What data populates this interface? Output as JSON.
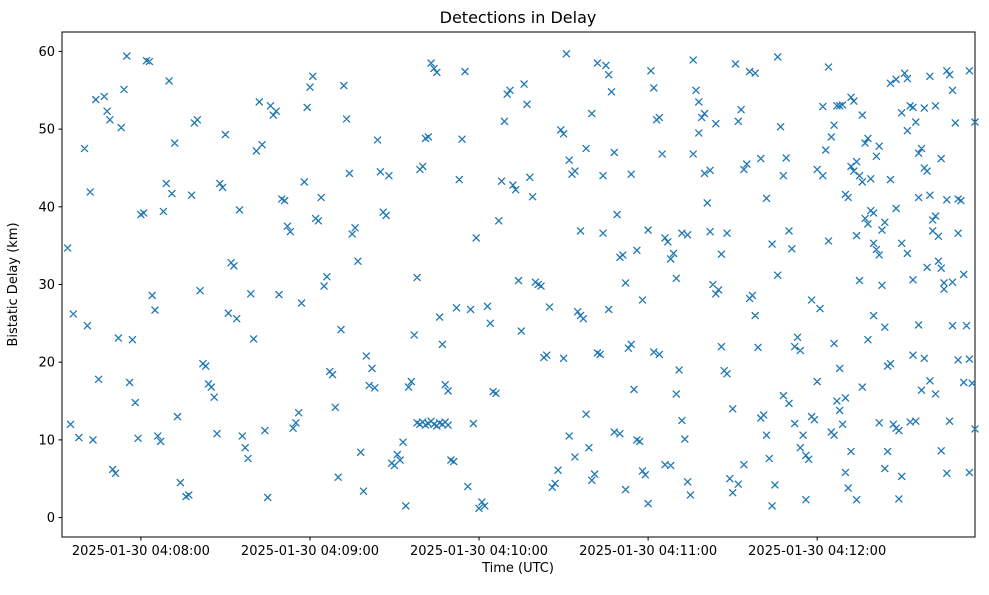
{
  "chart_data": {
    "type": "scatter",
    "title": "Detections in Delay",
    "xlabel": "Time (UTC)",
    "ylabel": "Bistatic Delay (km)",
    "marker": "x",
    "marker_color": "#1f77b4",
    "frame_color": "#000000",
    "x_unit": "seconds since 2025-01-30 04:08:00 UTC",
    "xlim": [
      -28,
      296
    ],
    "ylim": [
      -2.5,
      62.5
    ],
    "x_ticks": [
      0,
      60,
      120,
      180,
      240
    ],
    "x_tick_labels": [
      "2025-01-30 04:08:00",
      "2025-01-30 04:09:00",
      "2025-01-30 04:10:00",
      "2025-01-30 04:11:00",
      "2025-01-30 04:12:00"
    ],
    "y_ticks": [
      0,
      10,
      20,
      30,
      40,
      50,
      60
    ],
    "grid": false,
    "legend": null,
    "points": [
      [
        -26,
        34.7
      ],
      [
        -24,
        26.2
      ],
      [
        -22,
        10.3
      ],
      [
        -20,
        47.5
      ],
      [
        -19,
        24.7
      ],
      [
        -17,
        10.0
      ],
      [
        -15,
        17.8
      ],
      [
        -25,
        12.0
      ],
      [
        -18,
        41.9
      ],
      [
        -16,
        53.8
      ],
      [
        -13,
        54.2
      ],
      [
        -12,
        52.3
      ],
      [
        -11,
        51.2
      ],
      [
        -10,
        6.2
      ],
      [
        -9,
        5.7
      ],
      [
        -8,
        23.1
      ],
      [
        -7,
        50.2
      ],
      [
        -6,
        55.1
      ],
      [
        -5,
        59.4
      ],
      [
        -4,
        17.4
      ],
      [
        -3,
        22.9
      ],
      [
        -2,
        14.8
      ],
      [
        -1,
        10.2
      ],
      [
        0,
        39.0
      ],
      [
        1,
        39.2
      ],
      [
        2,
        58.8
      ],
      [
        3,
        58.7
      ],
      [
        4,
        28.6
      ],
      [
        5,
        26.7
      ],
      [
        6,
        10.5
      ],
      [
        7,
        9.8
      ],
      [
        8,
        39.4
      ],
      [
        9,
        43.0
      ],
      [
        10,
        56.2
      ],
      [
        11,
        41.7
      ],
      [
        12,
        48.2
      ],
      [
        13,
        13.0
      ],
      [
        14,
        4.5
      ],
      [
        16,
        2.7
      ],
      [
        17,
        2.9
      ],
      [
        18,
        41.5
      ],
      [
        19,
        50.8
      ],
      [
        20,
        51.2
      ],
      [
        21,
        29.2
      ],
      [
        22,
        19.8
      ],
      [
        23,
        19.5
      ],
      [
        24,
        17.2
      ],
      [
        25,
        16.8
      ],
      [
        26,
        15.5
      ],
      [
        27,
        10.8
      ],
      [
        28,
        43.0
      ],
      [
        29,
        42.5
      ],
      [
        30,
        49.3
      ],
      [
        31,
        26.3
      ],
      [
        32,
        32.8
      ],
      [
        33,
        32.4
      ],
      [
        34,
        25.6
      ],
      [
        35,
        39.6
      ],
      [
        36,
        10.5
      ],
      [
        37,
        9.0
      ],
      [
        38,
        7.6
      ],
      [
        39,
        28.8
      ],
      [
        40,
        23.0
      ],
      [
        41,
        47.2
      ],
      [
        42,
        53.5
      ],
      [
        43,
        48.0
      ],
      [
        44,
        11.2
      ],
      [
        45,
        2.6
      ],
      [
        46,
        53.0
      ],
      [
        47,
        51.8
      ],
      [
        48,
        52.3
      ],
      [
        49,
        28.7
      ],
      [
        50,
        41.0
      ],
      [
        51,
        40.8
      ],
      [
        52,
        37.5
      ],
      [
        53,
        36.8
      ],
      [
        54,
        11.5
      ],
      [
        55,
        12.2
      ],
      [
        56,
        13.5
      ],
      [
        57,
        27.6
      ],
      [
        58,
        43.2
      ],
      [
        59,
        52.8
      ],
      [
        60,
        55.4
      ],
      [
        61,
        56.8
      ],
      [
        62,
        38.5
      ],
      [
        63,
        38.2
      ],
      [
        64,
        41.2
      ],
      [
        65,
        29.8
      ],
      [
        66,
        31.0
      ],
      [
        67,
        18.8
      ],
      [
        68,
        18.4
      ],
      [
        69,
        14.2
      ],
      [
        70,
        5.2
      ],
      [
        71,
        24.2
      ],
      [
        72,
        55.6
      ],
      [
        73,
        51.3
      ],
      [
        74,
        44.3
      ],
      [
        75,
        36.5
      ],
      [
        76,
        37.3
      ],
      [
        77,
        33.0
      ],
      [
        78,
        8.4
      ],
      [
        79,
        3.4
      ],
      [
        80,
        20.8
      ],
      [
        81,
        17.0
      ],
      [
        82,
        19.2
      ],
      [
        83,
        16.7
      ],
      [
        84,
        48.6
      ],
      [
        85,
        44.5
      ],
      [
        86,
        39.3
      ],
      [
        87,
        38.9
      ],
      [
        88,
        44.0
      ],
      [
        89,
        7.0
      ],
      [
        90,
        6.7
      ],
      [
        91,
        8.1
      ],
      [
        92,
        7.4
      ],
      [
        93,
        9.7
      ],
      [
        94,
        1.5
      ],
      [
        95,
        16.8
      ],
      [
        96,
        17.5
      ],
      [
        97,
        23.5
      ],
      [
        98,
        30.9
      ],
      [
        99,
        44.8
      ],
      [
        100,
        45.2
      ],
      [
        101,
        48.8
      ],
      [
        102,
        49.0
      ],
      [
        103,
        58.5
      ],
      [
        104,
        57.8
      ],
      [
        105,
        57.3
      ],
      [
        98,
        12.2
      ],
      [
        99,
        12.0
      ],
      [
        100,
        12.3
      ],
      [
        101,
        11.9
      ],
      [
        102,
        12.1
      ],
      [
        103,
        12.4
      ],
      [
        104,
        12.0
      ],
      [
        105,
        11.8
      ],
      [
        106,
        12.2
      ],
      [
        107,
        12.0
      ],
      [
        108,
        12.3
      ],
      [
        109,
        11.9
      ],
      [
        106,
        25.8
      ],
      [
        107,
        22.3
      ],
      [
        108,
        17.1
      ],
      [
        109,
        16.3
      ],
      [
        110,
        7.4
      ],
      [
        111,
        7.2
      ],
      [
        112,
        27.0
      ],
      [
        113,
        43.5
      ],
      [
        114,
        48.7
      ],
      [
        115,
        57.4
      ],
      [
        116,
        4.0
      ],
      [
        117,
        26.8
      ],
      [
        118,
        12.1
      ],
      [
        119,
        36.0
      ],
      [
        120,
        1.2
      ],
      [
        121,
        2.0
      ],
      [
        122,
        1.5
      ],
      [
        123,
        27.2
      ],
      [
        124,
        25.0
      ],
      [
        125,
        16.2
      ],
      [
        126,
        16.0
      ],
      [
        127,
        38.2
      ],
      [
        128,
        43.3
      ],
      [
        129,
        51.0
      ],
      [
        130,
        54.5
      ],
      [
        131,
        55.0
      ],
      [
        132,
        42.8
      ],
      [
        133,
        42.2
      ],
      [
        134,
        30.5
      ],
      [
        135,
        24.0
      ],
      [
        136,
        55.8
      ],
      [
        137,
        53.2
      ],
      [
        138,
        43.8
      ],
      [
        139,
        41.3
      ],
      [
        140,
        30.3
      ],
      [
        141,
        30.0
      ],
      [
        142,
        29.8
      ],
      [
        143,
        20.6
      ],
      [
        144,
        20.9
      ],
      [
        145,
        27.1
      ],
      [
        146,
        3.9
      ],
      [
        147,
        4.4
      ],
      [
        148,
        6.1
      ],
      [
        149,
        49.9
      ],
      [
        150,
        49.4
      ],
      [
        151,
        59.7
      ],
      [
        152,
        46.0
      ],
      [
        153,
        44.2
      ],
      [
        154,
        44.6
      ],
      [
        155,
        26.5
      ],
      [
        156,
        26.0
      ],
      [
        157,
        25.6
      ],
      [
        158,
        13.3
      ],
      [
        159,
        9.0
      ],
      [
        160,
        4.8
      ],
      [
        161,
        5.6
      ],
      [
        162,
        21.2
      ],
      [
        163,
        21.0
      ],
      [
        164,
        44.0
      ],
      [
        165,
        58.2
      ],
      [
        166,
        57.0
      ],
      [
        167,
        54.8
      ],
      [
        168,
        47.0
      ],
      [
        169,
        39.0
      ],
      [
        170,
        33.5
      ],
      [
        171,
        33.8
      ],
      [
        172,
        30.2
      ],
      [
        173,
        21.8
      ],
      [
        174,
        22.3
      ],
      [
        175,
        16.5
      ],
      [
        176,
        10.0
      ],
      [
        177,
        9.8
      ],
      [
        178,
        6.0
      ],
      [
        179,
        5.5
      ],
      [
        180,
        1.8
      ],
      [
        181,
        57.5
      ],
      [
        182,
        55.3
      ],
      [
        183,
        51.2
      ],
      [
        184,
        51.5
      ],
      [
        185,
        46.8
      ],
      [
        186,
        36.0
      ],
      [
        187,
        35.5
      ],
      [
        188,
        33.3
      ],
      [
        189,
        34.0
      ],
      [
        190,
        30.8
      ],
      [
        191,
        19.0
      ],
      [
        192,
        12.5
      ],
      [
        193,
        10.1
      ],
      [
        194,
        4.6
      ],
      [
        195,
        2.9
      ],
      [
        196,
        58.9
      ],
      [
        197,
        55.0
      ],
      [
        198,
        53.5
      ],
      [
        199,
        51.5
      ],
      [
        200,
        52.0
      ],
      [
        201,
        40.5
      ],
      [
        202,
        36.8
      ],
      [
        203,
        30.0
      ],
      [
        204,
        28.8
      ],
      [
        205,
        29.3
      ],
      [
        206,
        22.0
      ],
      [
        207,
        18.9
      ],
      [
        208,
        18.5
      ],
      [
        209,
        5.0
      ],
      [
        210,
        3.2
      ],
      [
        211,
        58.4
      ],
      [
        212,
        51.0
      ],
      [
        213,
        52.5
      ],
      [
        214,
        44.8
      ],
      [
        215,
        45.5
      ],
      [
        216,
        28.2
      ],
      [
        217,
        28.6
      ],
      [
        218,
        26.0
      ],
      [
        219,
        21.9
      ],
      [
        220,
        12.8
      ],
      [
        221,
        13.2
      ],
      [
        222,
        10.6
      ],
      [
        223,
        7.6
      ],
      [
        224,
        1.5
      ],
      [
        225,
        4.2
      ],
      [
        226,
        59.3
      ],
      [
        227,
        50.3
      ],
      [
        228,
        44.0
      ],
      [
        229,
        46.3
      ],
      [
        230,
        36.9
      ],
      [
        231,
        34.6
      ],
      [
        232,
        22.0
      ],
      [
        233,
        23.2
      ],
      [
        234,
        21.5
      ],
      [
        235,
        10.6
      ],
      [
        236,
        8.0
      ],
      [
        237,
        7.5
      ],
      [
        238,
        13.0
      ],
      [
        239,
        12.6
      ],
      [
        240,
        17.5
      ],
      [
        241,
        26.9
      ],
      [
        242,
        44.0
      ],
      [
        243,
        47.3
      ],
      [
        244,
        35.6
      ],
      [
        245,
        11.0
      ],
      [
        246,
        10.6
      ],
      [
        247,
        15.0
      ],
      [
        248,
        13.8
      ],
      [
        249,
        12.0
      ],
      [
        250,
        5.8
      ],
      [
        251,
        3.8
      ],
      [
        252,
        54.1
      ],
      [
        253,
        53.6
      ],
      [
        254,
        36.3
      ],
      [
        255,
        30.5
      ],
      [
        256,
        51.8
      ],
      [
        257,
        48.2
      ],
      [
        258,
        48.8
      ],
      [
        259,
        43.6
      ],
      [
        260,
        39.2
      ],
      [
        261,
        34.5
      ],
      [
        262,
        33.8
      ],
      [
        263,
        29.9
      ],
      [
        264,
        24.5
      ],
      [
        265,
        19.5
      ],
      [
        266,
        19.8
      ],
      [
        267,
        12.0
      ],
      [
        268,
        11.5
      ],
      [
        269,
        11.2
      ],
      [
        270,
        5.3
      ],
      [
        252,
        45.2
      ],
      [
        253,
        44.6
      ],
      [
        254,
        45.8
      ],
      [
        255,
        44.0
      ],
      [
        256,
        43.2
      ],
      [
        250,
        41.6
      ],
      [
        251,
        41.2
      ],
      [
        257,
        38.5
      ],
      [
        258,
        37.8
      ],
      [
        259,
        39.5
      ],
      [
        260,
        35.3
      ],
      [
        247,
        53.0
      ],
      [
        248,
        53.0
      ],
      [
        249,
        53.1
      ],
      [
        246,
        50.5
      ],
      [
        245,
        49.0
      ],
      [
        261,
        46.5
      ],
      [
        262,
        47.8
      ],
      [
        263,
        37.0
      ],
      [
        264,
        38.0
      ],
      [
        271,
        57.2
      ],
      [
        272,
        56.5
      ],
      [
        273,
        53.0
      ],
      [
        274,
        52.8
      ],
      [
        275,
        50.9
      ],
      [
        276,
        46.9
      ],
      [
        277,
        47.5
      ],
      [
        278,
        45.0
      ],
      [
        279,
        44.6
      ],
      [
        280,
        41.5
      ],
      [
        281,
        38.3
      ],
      [
        282,
        38.8
      ],
      [
        283,
        36.2
      ],
      [
        284,
        32.1
      ],
      [
        285,
        30.2
      ],
      [
        286,
        57.5
      ],
      [
        287,
        57.0
      ],
      [
        288,
        55.0
      ],
      [
        289,
        50.8
      ],
      [
        290,
        41.0
      ],
      [
        291,
        40.8
      ],
      [
        292,
        31.3
      ],
      [
        293,
        24.7
      ],
      [
        294,
        20.4
      ],
      [
        295,
        17.3
      ],
      [
        296,
        11.4
      ],
      [
        294,
        5.8
      ],
      [
        290,
        36.6
      ],
      [
        288,
        30.3
      ],
      [
        287,
        12.4
      ],
      [
        266,
        55.9
      ],
      [
        268,
        56.4
      ],
      [
        270,
        52.1
      ],
      [
        272,
        49.8
      ],
      [
        274,
        30.6
      ],
      [
        276,
        24.8
      ],
      [
        278,
        20.5
      ],
      [
        280,
        17.6
      ],
      [
        282,
        15.9
      ],
      [
        284,
        8.6
      ],
      [
        286,
        5.7
      ],
      [
        269,
        2.4
      ],
      [
        265,
        8.5
      ],
      [
        273,
        12.3
      ],
      [
        275,
        12.4
      ],
      [
        277,
        16.4
      ],
      [
        279,
        32.2
      ],
      [
        281,
        36.9
      ],
      [
        283,
        33.0
      ],
      [
        285,
        29.4
      ],
      [
        150,
        20.5
      ],
      [
        152,
        10.5
      ],
      [
        154,
        7.8
      ],
      [
        156,
        36.9
      ],
      [
        158,
        47.5
      ],
      [
        160,
        52.0
      ],
      [
        162,
        58.5
      ],
      [
        164,
        36.6
      ],
      [
        166,
        26.8
      ],
      [
        168,
        11.0
      ],
      [
        170,
        10.8
      ],
      [
        172,
        3.6
      ],
      [
        174,
        44.2
      ],
      [
        176,
        34.4
      ],
      [
        178,
        28.0
      ],
      [
        180,
        37.0
      ],
      [
        182,
        21.3
      ],
      [
        184,
        21.0
      ],
      [
        186,
        6.8
      ],
      [
        188,
        6.7
      ],
      [
        190,
        15.9
      ],
      [
        192,
        36.6
      ],
      [
        194,
        36.4
      ],
      [
        196,
        46.8
      ],
      [
        198,
        49.5
      ],
      [
        200,
        44.3
      ],
      [
        202,
        44.7
      ],
      [
        204,
        50.7
      ],
      [
        206,
        33.9
      ],
      [
        208,
        36.6
      ],
      [
        210,
        14.0
      ],
      [
        212,
        4.3
      ],
      [
        214,
        6.8
      ],
      [
        216,
        57.4
      ],
      [
        218,
        57.2
      ],
      [
        220,
        46.2
      ],
      [
        222,
        41.1
      ],
      [
        224,
        35.2
      ],
      [
        226,
        31.2
      ],
      [
        228,
        15.7
      ],
      [
        230,
        14.7
      ],
      [
        232,
        12.1
      ],
      [
        234,
        9.0
      ],
      [
        236,
        2.3
      ],
      [
        238,
        28.0
      ],
      [
        240,
        44.8
      ],
      [
        242,
        52.9
      ],
      [
        244,
        58.0
      ],
      [
        246,
        22.4
      ],
      [
        248,
        19.2
      ],
      [
        250,
        15.4
      ],
      [
        252,
        8.5
      ],
      [
        254,
        2.3
      ],
      [
        256,
        16.8
      ],
      [
        258,
        22.9
      ],
      [
        260,
        26.0
      ],
      [
        262,
        12.2
      ],
      [
        264,
        6.3
      ],
      [
        266,
        43.5
      ],
      [
        268,
        39.8
      ],
      [
        270,
        35.3
      ],
      [
        272,
        34.0
      ],
      [
        274,
        20.9
      ],
      [
        276,
        41.2
      ],
      [
        278,
        52.7
      ],
      [
        280,
        56.8
      ],
      [
        282,
        53.0
      ],
      [
        284,
        46.2
      ],
      [
        286,
        40.9
      ],
      [
        288,
        24.7
      ],
      [
        290,
        20.3
      ],
      [
        292,
        17.4
      ],
      [
        294,
        57.5
      ],
      [
        296,
        50.9
      ]
    ]
  }
}
